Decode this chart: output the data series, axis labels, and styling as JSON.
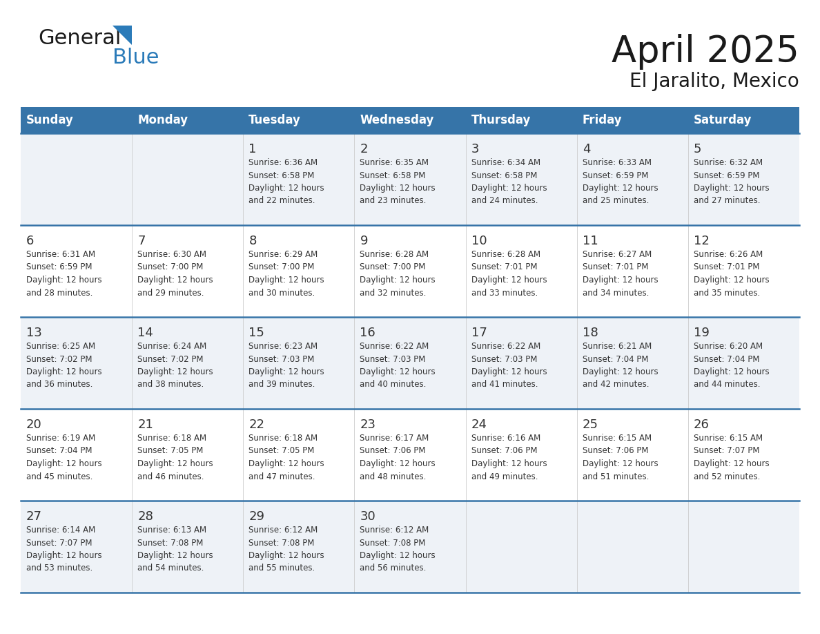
{
  "title": "April 2025",
  "subtitle": "El Jaralito, Mexico",
  "header_bg_color": "#3674a8",
  "header_text_color": "#ffffff",
  "row_bg_odd": "#eef2f7",
  "row_bg_even": "#ffffff",
  "divider_color": "#3674a8",
  "text_color": "#333333",
  "days_of_week": [
    "Sunday",
    "Monday",
    "Tuesday",
    "Wednesday",
    "Thursday",
    "Friday",
    "Saturday"
  ],
  "weeks": [
    [
      {
        "day": "",
        "info": ""
      },
      {
        "day": "",
        "info": ""
      },
      {
        "day": "1",
        "info": "Sunrise: 6:36 AM\nSunset: 6:58 PM\nDaylight: 12 hours\nand 22 minutes."
      },
      {
        "day": "2",
        "info": "Sunrise: 6:35 AM\nSunset: 6:58 PM\nDaylight: 12 hours\nand 23 minutes."
      },
      {
        "day": "3",
        "info": "Sunrise: 6:34 AM\nSunset: 6:58 PM\nDaylight: 12 hours\nand 24 minutes."
      },
      {
        "day": "4",
        "info": "Sunrise: 6:33 AM\nSunset: 6:59 PM\nDaylight: 12 hours\nand 25 minutes."
      },
      {
        "day": "5",
        "info": "Sunrise: 6:32 AM\nSunset: 6:59 PM\nDaylight: 12 hours\nand 27 minutes."
      }
    ],
    [
      {
        "day": "6",
        "info": "Sunrise: 6:31 AM\nSunset: 6:59 PM\nDaylight: 12 hours\nand 28 minutes."
      },
      {
        "day": "7",
        "info": "Sunrise: 6:30 AM\nSunset: 7:00 PM\nDaylight: 12 hours\nand 29 minutes."
      },
      {
        "day": "8",
        "info": "Sunrise: 6:29 AM\nSunset: 7:00 PM\nDaylight: 12 hours\nand 30 minutes."
      },
      {
        "day": "9",
        "info": "Sunrise: 6:28 AM\nSunset: 7:00 PM\nDaylight: 12 hours\nand 32 minutes."
      },
      {
        "day": "10",
        "info": "Sunrise: 6:28 AM\nSunset: 7:01 PM\nDaylight: 12 hours\nand 33 minutes."
      },
      {
        "day": "11",
        "info": "Sunrise: 6:27 AM\nSunset: 7:01 PM\nDaylight: 12 hours\nand 34 minutes."
      },
      {
        "day": "12",
        "info": "Sunrise: 6:26 AM\nSunset: 7:01 PM\nDaylight: 12 hours\nand 35 minutes."
      }
    ],
    [
      {
        "day": "13",
        "info": "Sunrise: 6:25 AM\nSunset: 7:02 PM\nDaylight: 12 hours\nand 36 minutes."
      },
      {
        "day": "14",
        "info": "Sunrise: 6:24 AM\nSunset: 7:02 PM\nDaylight: 12 hours\nand 38 minutes."
      },
      {
        "day": "15",
        "info": "Sunrise: 6:23 AM\nSunset: 7:03 PM\nDaylight: 12 hours\nand 39 minutes."
      },
      {
        "day": "16",
        "info": "Sunrise: 6:22 AM\nSunset: 7:03 PM\nDaylight: 12 hours\nand 40 minutes."
      },
      {
        "day": "17",
        "info": "Sunrise: 6:22 AM\nSunset: 7:03 PM\nDaylight: 12 hours\nand 41 minutes."
      },
      {
        "day": "18",
        "info": "Sunrise: 6:21 AM\nSunset: 7:04 PM\nDaylight: 12 hours\nand 42 minutes."
      },
      {
        "day": "19",
        "info": "Sunrise: 6:20 AM\nSunset: 7:04 PM\nDaylight: 12 hours\nand 44 minutes."
      }
    ],
    [
      {
        "day": "20",
        "info": "Sunrise: 6:19 AM\nSunset: 7:04 PM\nDaylight: 12 hours\nand 45 minutes."
      },
      {
        "day": "21",
        "info": "Sunrise: 6:18 AM\nSunset: 7:05 PM\nDaylight: 12 hours\nand 46 minutes."
      },
      {
        "day": "22",
        "info": "Sunrise: 6:18 AM\nSunset: 7:05 PM\nDaylight: 12 hours\nand 47 minutes."
      },
      {
        "day": "23",
        "info": "Sunrise: 6:17 AM\nSunset: 7:06 PM\nDaylight: 12 hours\nand 48 minutes."
      },
      {
        "day": "24",
        "info": "Sunrise: 6:16 AM\nSunset: 7:06 PM\nDaylight: 12 hours\nand 49 minutes."
      },
      {
        "day": "25",
        "info": "Sunrise: 6:15 AM\nSunset: 7:06 PM\nDaylight: 12 hours\nand 51 minutes."
      },
      {
        "day": "26",
        "info": "Sunrise: 6:15 AM\nSunset: 7:07 PM\nDaylight: 12 hours\nand 52 minutes."
      }
    ],
    [
      {
        "day": "27",
        "info": "Sunrise: 6:14 AM\nSunset: 7:07 PM\nDaylight: 12 hours\nand 53 minutes."
      },
      {
        "day": "28",
        "info": "Sunrise: 6:13 AM\nSunset: 7:08 PM\nDaylight: 12 hours\nand 54 minutes."
      },
      {
        "day": "29",
        "info": "Sunrise: 6:12 AM\nSunset: 7:08 PM\nDaylight: 12 hours\nand 55 minutes."
      },
      {
        "day": "30",
        "info": "Sunrise: 6:12 AM\nSunset: 7:08 PM\nDaylight: 12 hours\nand 56 minutes."
      },
      {
        "day": "",
        "info": ""
      },
      {
        "day": "",
        "info": ""
      },
      {
        "day": "",
        "info": ""
      }
    ]
  ],
  "logo_color_general": "#1a1a1a",
  "logo_color_blue": "#2b7bb9",
  "logo_triangle_color": "#2b7bb9"
}
